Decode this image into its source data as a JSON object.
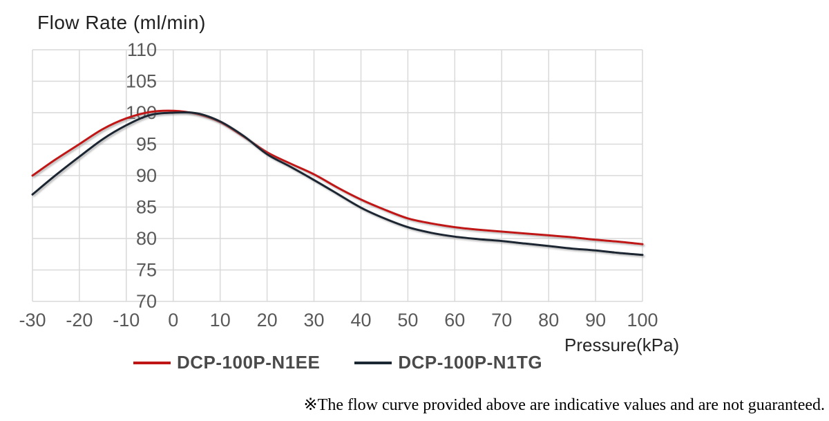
{
  "chart": {
    "y_axis_title": "Flow Rate (ml/min)",
    "x_axis_title": "Pressure(kPa)"
  },
  "footnote": "※The flow curve provided above are indicative values and are not guaranteed.",
  "colors": {
    "gridline": "#d9d9d9",
    "tick_label": "#595959",
    "axis_title": "#1f1f1f",
    "legend_label": "#4a4a4a"
  },
  "chart_data": {
    "type": "line",
    "x_label": "Pressure(kPa)",
    "y_label": "Flow Rate (ml/min)",
    "xlim": [
      -30,
      100
    ],
    "ylim": [
      70,
      110
    ],
    "x_ticks": [
      -30,
      -20,
      -10,
      0,
      10,
      20,
      30,
      40,
      50,
      60,
      70,
      80,
      90,
      100
    ],
    "y_ticks": [
      70,
      75,
      80,
      85,
      90,
      95,
      100,
      105,
      110
    ],
    "grid": true,
    "legend_position": "bottom",
    "x": [
      -30,
      -25,
      -20,
      -15,
      -10,
      -5,
      0,
      5,
      10,
      15,
      20,
      25,
      30,
      35,
      40,
      45,
      50,
      55,
      60,
      65,
      70,
      75,
      80,
      85,
      90,
      95,
      100
    ],
    "series": [
      {
        "name": "DCP-100P-N1EE",
        "color": "#c01515",
        "values": [
          90.0,
          92.6,
          95.0,
          97.4,
          99.1,
          100.1,
          100.3,
          99.8,
          98.5,
          96.2,
          93.7,
          91.9,
          90.2,
          88.1,
          86.2,
          84.6,
          83.2,
          82.4,
          81.8,
          81.4,
          81.1,
          80.8,
          80.5,
          80.2,
          79.8,
          79.5,
          79.1
        ]
      },
      {
        "name": "DCP-100P-N1TG",
        "color": "#1b2733",
        "values": [
          87.0,
          90.1,
          93.0,
          95.8,
          98.0,
          99.6,
          100.0,
          99.9,
          98.6,
          96.3,
          93.4,
          91.4,
          89.3,
          87.1,
          84.9,
          83.2,
          81.8,
          80.9,
          80.3,
          79.9,
          79.6,
          79.2,
          78.8,
          78.4,
          78.1,
          77.7,
          77.4
        ]
      }
    ]
  }
}
